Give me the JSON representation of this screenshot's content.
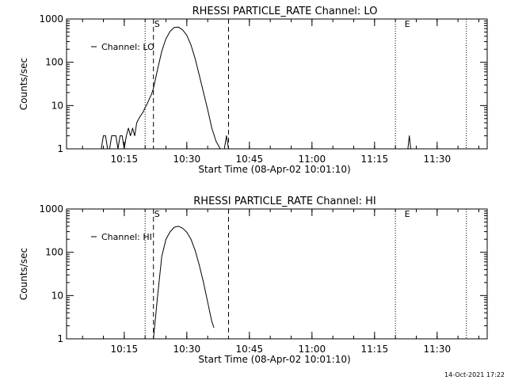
{
  "footer": {
    "timestamp": "14-Oct-2021 17:22"
  },
  "colors": {
    "line": "#000000",
    "background": "#ffffff"
  },
  "chart_data": [
    {
      "type": "line",
      "title": "RHESSI PARTICLE_RATE Channel: LO",
      "xlabel": "Start Time (08-Apr-02 10:01:10)",
      "ylabel": "Counts/sec",
      "yscale": "log",
      "xlim": [
        "10:01:10",
        "11:42:00"
      ],
      "ylim": [
        1,
        1000
      ],
      "x_ticks": [
        "10:15",
        "10:30",
        "10:45",
        "11:00",
        "11:15",
        "11:30"
      ],
      "y_ticks": [
        "1",
        "10",
        "100",
        "1000"
      ],
      "legend": {
        "position": "top-left",
        "entries": [
          "Channel: LO"
        ]
      },
      "markers": [
        {
          "label": "S",
          "x": "10:22:00",
          "style": "dashed"
        },
        {
          "label": "E",
          "x": "11:22:00",
          "style": "dotted"
        }
      ],
      "vlines": [
        {
          "x": "10:20:00",
          "style": "dotted"
        },
        {
          "x": "10:22:00",
          "style": "dashed"
        },
        {
          "x": "10:40:00",
          "style": "dashed"
        },
        {
          "x": "11:20:00",
          "style": "dotted"
        },
        {
          "x": "11:37:00",
          "style": "dotted"
        }
      ],
      "series": [
        {
          "name": "Channel: LO",
          "segments": [
            {
              "x": [
                "10:09:30",
                "10:10:00",
                "10:10:30",
                "10:11:00",
                "10:11:30",
                "10:12:00",
                "10:12:30",
                "10:13:00",
                "10:13:30",
                "10:14:00",
                "10:14:30",
                "10:15:00",
                "10:15:30",
                "10:16:00",
                "10:16:30",
                "10:17:00",
                "10:17:30",
                "10:18:00",
                "10:18:30",
                "10:19:00",
                "10:19:30",
                "10:20:00",
                "10:20:30",
                "10:21:00",
                "10:21:30",
                "10:22:00",
                "10:23:00",
                "10:24:00",
                "10:25:00",
                "10:26:00",
                "10:27:00",
                "10:28:00",
                "10:29:00",
                "10:30:00",
                "10:31:00",
                "10:32:00",
                "10:33:00",
                "10:34:00",
                "10:35:00",
                "10:36:00",
                "10:37:00",
                "10:38:00",
                "10:38:30",
                "10:39:00",
                "10:39:30",
                "10:40:00",
                "10:40:30"
              ],
              "y": [
                1,
                2,
                2,
                1,
                1,
                2,
                2,
                2,
                1,
                2,
                2,
                1,
                2,
                3,
                2,
                3,
                2,
                4,
                5,
                6,
                7,
                9,
                11,
                14,
                18,
                25,
                70,
                180,
                350,
                520,
                640,
                650,
                560,
                420,
                250,
                120,
                50,
                20,
                8,
                3,
                1.5,
                1,
                1,
                1,
                2,
                1,
                1
              ]
            },
            {
              "x": [
                "11:23:00",
                "11:23:20",
                "11:23:40"
              ],
              "y": [
                1,
                2,
                1
              ]
            }
          ]
        }
      ]
    },
    {
      "type": "line",
      "title": "RHESSI PARTICLE_RATE Channel: HI",
      "xlabel": "Start Time (08-Apr-02 10:01:10)",
      "ylabel": "Counts/sec",
      "yscale": "log",
      "xlim": [
        "10:01:10",
        "11:42:00"
      ],
      "ylim": [
        1,
        1000
      ],
      "x_ticks": [
        "10:15",
        "10:30",
        "10:45",
        "11:00",
        "11:15",
        "11:30"
      ],
      "y_ticks": [
        "1",
        "10",
        "100",
        "1000"
      ],
      "legend": {
        "position": "top-left",
        "entries": [
          "Channel: HI"
        ]
      },
      "markers": [
        {
          "label": "S",
          "x": "10:22:00",
          "style": "dashed"
        },
        {
          "label": "E",
          "x": "11:22:00",
          "style": "dotted"
        }
      ],
      "vlines": [
        {
          "x": "10:20:00",
          "style": "dotted"
        },
        {
          "x": "10:22:00",
          "style": "dashed"
        },
        {
          "x": "10:40:00",
          "style": "dashed"
        },
        {
          "x": "11:20:00",
          "style": "dotted"
        },
        {
          "x": "11:37:00",
          "style": "dotted"
        }
      ],
      "series": [
        {
          "name": "Channel: HI",
          "segments": [
            {
              "x": [
                "10:22:00",
                "10:23:00",
                "10:24:00",
                "10:25:00",
                "10:26:00",
                "10:27:00",
                "10:28:00",
                "10:29:00",
                "10:30:00",
                "10:31:00",
                "10:32:00",
                "10:33:00",
                "10:34:00",
                "10:35:00",
                "10:36:00",
                "10:36:30"
              ],
              "y": [
                1,
                10,
                80,
                200,
                300,
                380,
                400,
                360,
                290,
                200,
                110,
                50,
                20,
                7,
                2.5,
                1.8
              ]
            }
          ]
        }
      ]
    }
  ]
}
